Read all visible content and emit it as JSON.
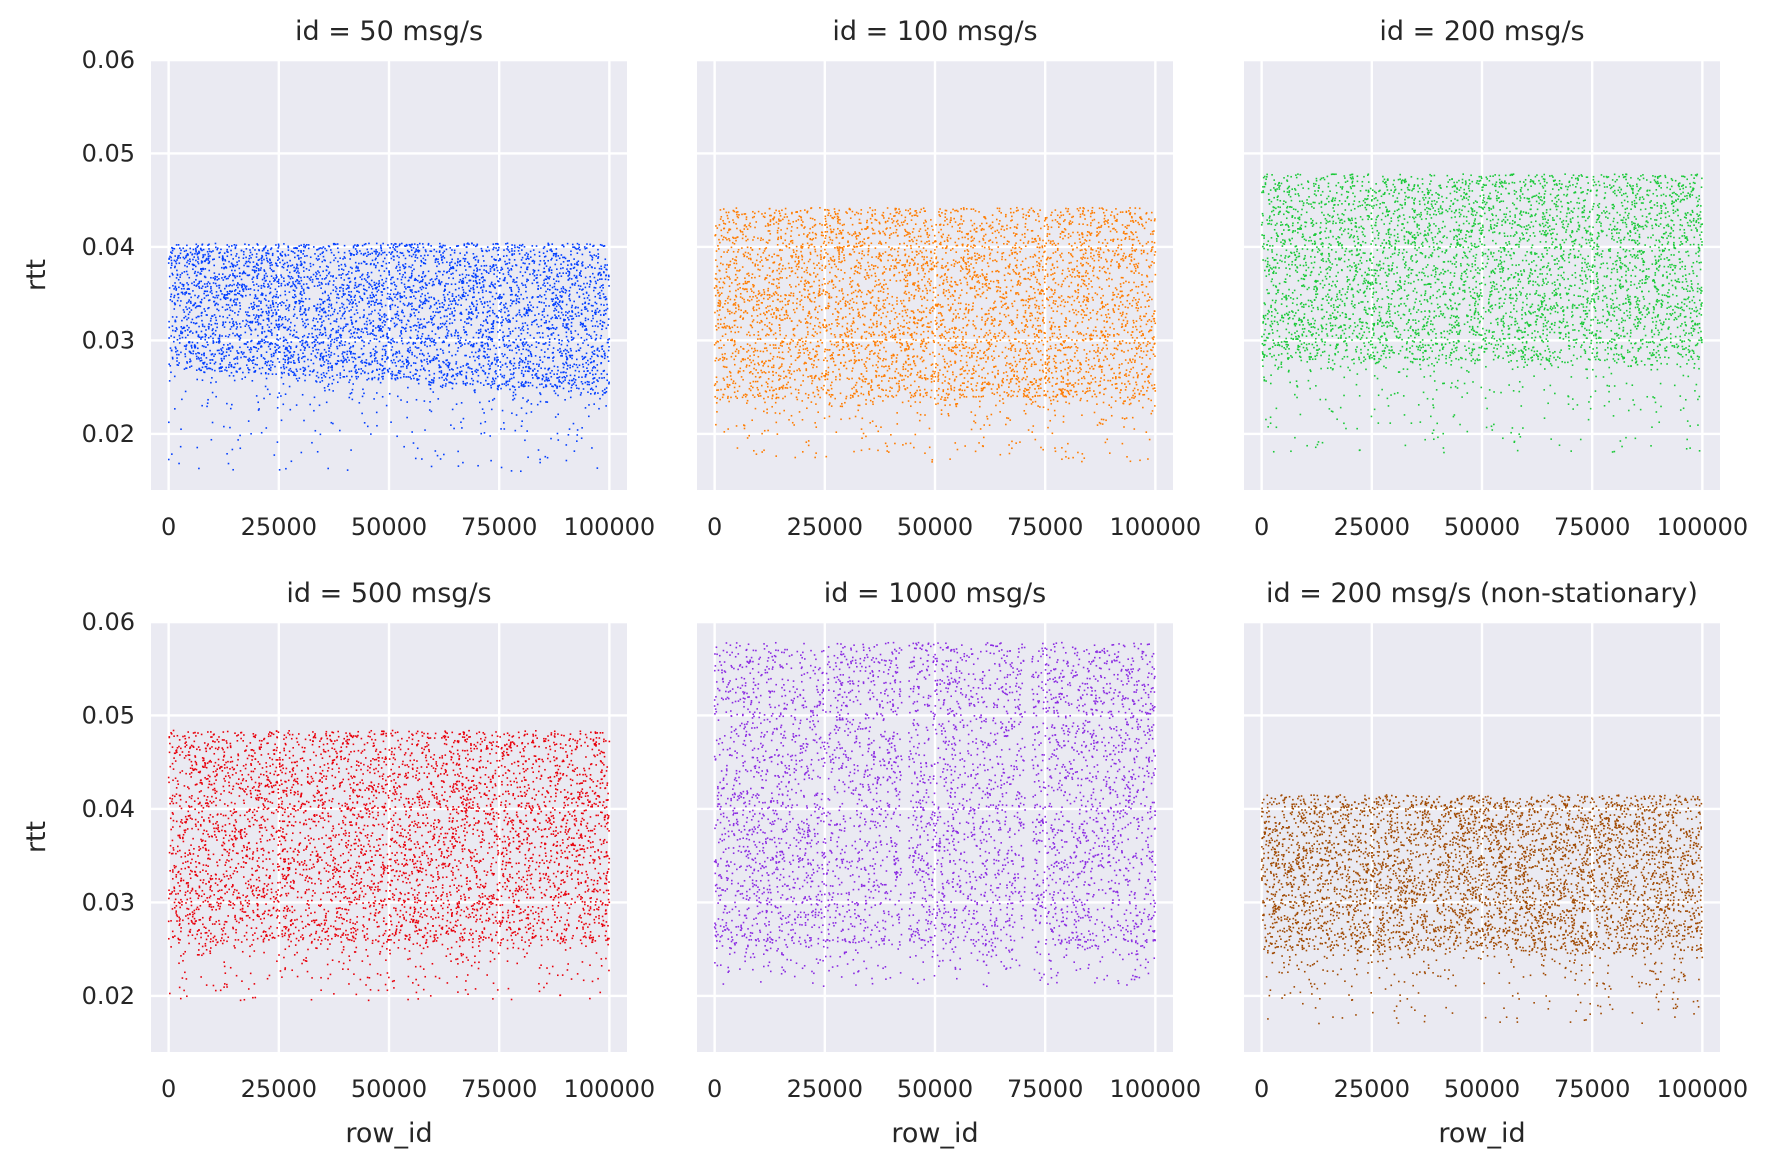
{
  "chart_data": {
    "type": "scatter",
    "layout": "faceted-grid-2x3",
    "sharey": true,
    "xlabel": "row_id",
    "ylabel": "rtt",
    "xlim": [
      -4000,
      104000
    ],
    "ylim": [
      0.014,
      0.06
    ],
    "xticks": [
      0,
      25000,
      50000,
      75000,
      100000
    ],
    "xtick_labels": [
      "0",
      "25000",
      "50000",
      "75000",
      "100000"
    ],
    "yticks": [
      0.02,
      0.03,
      0.04,
      0.05,
      0.06
    ],
    "ytick_labels": [
      "0.02",
      "0.03",
      "0.04",
      "0.05",
      "0.06"
    ],
    "grid": true,
    "background": "#EAEAF2",
    "panels": [
      {
        "title": "id = 50 msg/s",
        "color": "#023EFF",
        "x_range": [
          0,
          100000
        ],
        "rtt_upper": 0.0404,
        "rtt_dense_lower": [
          0.027,
          0.0245
        ],
        "rtt_sparse_lower": 0.016,
        "points_sampled": 5000
      },
      {
        "title": "id = 100 msg/s",
        "color": "#FF7C00",
        "x_range": [
          0,
          100000
        ],
        "rtt_upper": 0.0442,
        "rtt_dense_lower": 0.024,
        "rtt_sparse_lower": 0.017,
        "points_sampled": 5000
      },
      {
        "title": "id = 200 msg/s",
        "color": "#1AC938",
        "x_range": [
          0,
          100000
        ],
        "rtt_upper": 0.0478,
        "rtt_dense_lower": 0.028,
        "rtt_sparse_lower": 0.018,
        "points_sampled": 5000
      },
      {
        "title": "id = 500 msg/s",
        "color": "#E8000B",
        "x_range": [
          0,
          100000
        ],
        "rtt_upper": 0.0484,
        "rtt_dense_lower": 0.026,
        "rtt_sparse_lower": 0.0195,
        "points_sampled": 5000
      },
      {
        "title": "id = 1000 msg/s",
        "color": "#8B2BE2",
        "x_range": [
          0,
          100000
        ],
        "rtt_upper": 0.0578,
        "rtt_dense_lower": 0.026,
        "rtt_sparse_lower": 0.021,
        "gaps": [
          [
            42500,
            44000
          ],
          [
            70500,
            72000
          ]
        ],
        "points_sampled": 5000
      },
      {
        "title": "id = 200 msg/s (non-stationary)",
        "color": "#9F4800",
        "x_range": [
          0,
          100000
        ],
        "rtt_upper": 0.0415,
        "rtt_dense_lower": 0.025,
        "rtt_sparse_lower": 0.017,
        "points_sampled": 5000
      }
    ]
  }
}
